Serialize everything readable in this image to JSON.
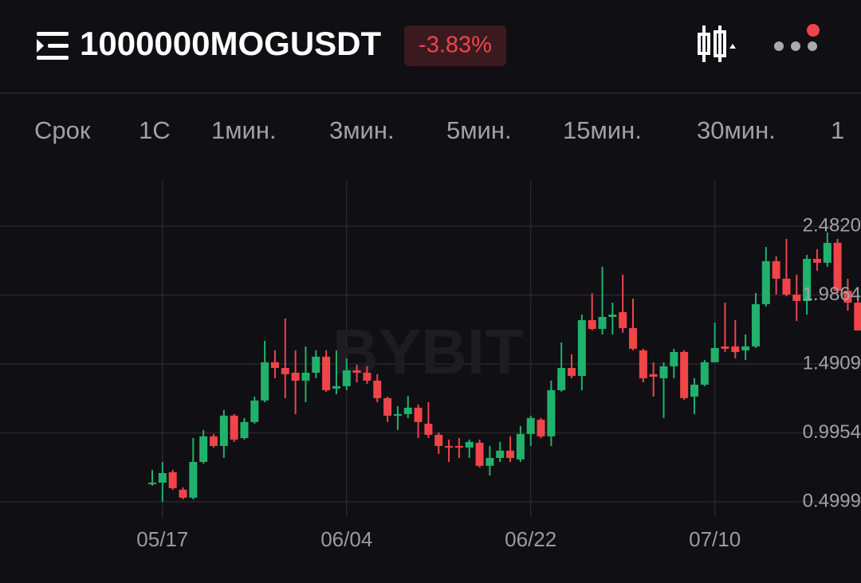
{
  "header": {
    "title": "1000000MOGUSDT",
    "change": "-3.83%"
  },
  "tabs": [
    "Срок",
    "1С",
    "1мин.",
    "3мин.",
    "5мин.",
    "15мин.",
    "30мин.",
    "1"
  ],
  "chart_data": {
    "type": "candlestick",
    "watermark": "BYBIT",
    "categories": [
      null,
      "05/17",
      null,
      null,
      null,
      null,
      null,
      null,
      null,
      null,
      null,
      null,
      null,
      null,
      null,
      null,
      null,
      null,
      null,
      "06/04",
      null,
      null,
      null,
      null,
      null,
      null,
      null,
      null,
      null,
      null,
      null,
      null,
      null,
      null,
      null,
      null,
      null,
      "06/22",
      null,
      null,
      null,
      null,
      null,
      null,
      null,
      null,
      null,
      null,
      null,
      null,
      null,
      null,
      null,
      null,
      null,
      "07/10",
      null,
      null,
      null,
      null,
      null,
      null,
      null,
      null,
      null,
      null,
      null,
      null,
      null,
      null
    ],
    "open": [
      0.626,
      0.637,
      0.712,
      0.586,
      0.529,
      0.786,
      0.97,
      0.901,
      1.119,
      0.958,
      1.073,
      1.228,
      1.503,
      1.462,
      1.428,
      1.371,
      1.428,
      1.543,
      1.314,
      1.331,
      1.445,
      1.428,
      1.371,
      1.245,
      1.119,
      1.13,
      1.176,
      1.061,
      0.981,
      0.901,
      0.901,
      0.89,
      0.924,
      0.758,
      0.815,
      0.867,
      0.804,
      0.987,
      1.09,
      0.97,
      1.302,
      1.462,
      1.405,
      1.806,
      1.743,
      1.829,
      1.864,
      1.749,
      1.589,
      1.417,
      1.388,
      1.474,
      1.577,
      1.256,
      1.342,
      1.503,
      1.617,
      1.617,
      1.589,
      1.617,
      1.921,
      2.23,
      2.104,
      1.99,
      1.944,
      2.247,
      2.219,
      2.362,
      2.018,
      1.932
    ],
    "high": [
      0.729,
      0.786,
      0.729,
      0.603,
      0.958,
      1.016,
      0.987,
      1.159,
      1.13,
      1.102,
      1.256,
      1.657,
      1.589,
      1.818,
      1.589,
      1.617,
      1.589,
      1.589,
      1.589,
      1.531,
      1.485,
      1.474,
      1.417,
      1.256,
      1.187,
      1.262,
      1.199,
      1.216,
      0.998,
      0.947,
      0.958,
      0.947,
      0.947,
      0.901,
      0.93,
      0.97,
      1.044,
      1.119,
      1.102,
      1.371,
      1.646,
      1.56,
      1.846,
      2.001,
      2.19,
      1.932,
      2.133,
      1.961,
      1.6,
      1.503,
      1.503,
      1.6,
      1.589,
      1.388,
      1.52,
      1.789,
      1.932,
      1.806,
      1.703,
      2.001,
      2.333,
      2.265,
      2.391,
      2.133,
      2.276,
      2.316,
      2.436,
      2.391,
      2.104,
      1.961
    ],
    "low": [
      0.615,
      0.5,
      0.586,
      0.517,
      0.517,
      0.775,
      0.89,
      0.815,
      0.93,
      0.947,
      1.061,
      1.216,
      1.388,
      1.245,
      1.13,
      1.216,
      1.388,
      1.291,
      1.273,
      1.302,
      1.359,
      1.348,
      1.216,
      1.073,
      1.016,
      1.102,
      0.958,
      0.958,
      0.844,
      0.786,
      0.815,
      0.815,
      0.746,
      0.689,
      0.786,
      0.786,
      0.786,
      0.901,
      0.958,
      0.901,
      1.291,
      1.388,
      1.302,
      1.732,
      1.703,
      1.703,
      1.715,
      1.589,
      1.359,
      1.256,
      1.102,
      1.388,
      1.233,
      1.13,
      1.331,
      1.503,
      1.577,
      1.531,
      1.52,
      1.606,
      1.904,
      1.99,
      1.978,
      1.8,
      1.846,
      2.161,
      2.19,
      2.001,
      1.875,
      1.732
    ],
    "close": [
      0.637,
      0.706,
      0.597,
      0.529,
      0.786,
      0.97,
      0.901,
      1.119,
      0.947,
      1.073,
      1.228,
      1.503,
      1.462,
      1.417,
      1.371,
      1.428,
      1.543,
      1.302,
      1.331,
      1.445,
      1.428,
      1.371,
      1.245,
      1.119,
      1.13,
      1.176,
      1.073,
      0.981,
      0.901,
      0.89,
      0.89,
      0.93,
      0.758,
      0.815,
      0.867,
      0.815,
      0.987,
      1.102,
      0.97,
      1.302,
      1.462,
      1.405,
      1.806,
      1.743,
      1.829,
      1.846,
      1.749,
      1.6,
      1.388,
      1.399,
      1.474,
      1.577,
      1.245,
      1.342,
      1.503,
      1.606,
      1.6,
      1.577,
      1.617,
      1.921,
      2.23,
      2.104,
      1.99,
      1.944,
      2.247,
      2.219,
      2.362,
      2.018,
      1.932,
      1.732
    ],
    "up_color": "#20b26c",
    "down_color": "#ef454a",
    "ylim": [
      0.385,
      2.82
    ],
    "yticks": [
      0.4999,
      0.9954,
      1.4909,
      1.9864,
      {
        "value": 2.482,
        "label": "2.4820"
      }
    ],
    "grid": true
  }
}
